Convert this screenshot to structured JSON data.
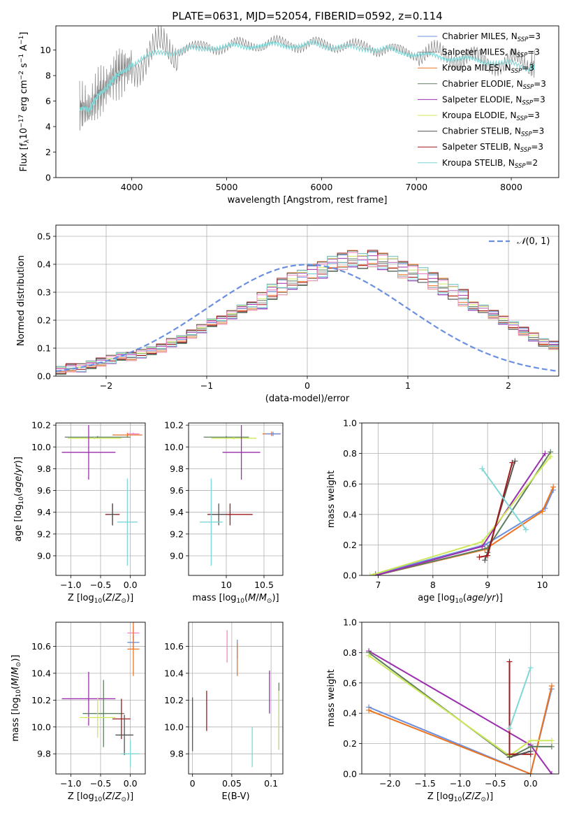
{
  "figure_title": "PLATE=0631, MJD=52054, FIBERID=0592, z=0.114",
  "colors": {
    "Chabrier MILES": "#6b8fe0",
    "Salpeter MILES": "#8b8b8b",
    "Kroupa MILES": "#ec7420",
    "Chabrier ELODIE": "#5e7f5e",
    "Salpeter ELODIE": "#9b2fae",
    "Kroupa ELODIE": "#cde85a",
    "Chabrier STELIB": "#555555",
    "Salpeter STELIB": "#a01818",
    "Kroupa STELIB": "#7fd6d6",
    "Chabrier STELIB_alt": "#ef86c1"
  },
  "chart_data": [
    {
      "id": "spectrum",
      "type": "line",
      "title": "PLATE=0631, MJD=52054, FIBERID=0592, z=0.114",
      "xlabel": "wavelength [Angstrom, rest frame]",
      "ylabel": "Flux [f_λ 10^-17 erg cm^-2 s^-1 A^-1]",
      "xlim": [
        3200,
        8500
      ],
      "ylim": [
        0,
        11.9
      ],
      "xticks": [
        4000,
        5000,
        6000,
        7000,
        8000
      ],
      "yticks": [
        0,
        2,
        4,
        6,
        8,
        10
      ],
      "grid": false,
      "legend_position": "top-right",
      "legend": [
        {
          "main": "Chabrier MILES, N",
          "sub": "SSP",
          "tail": "=3",
          "color": "#6b8fe0"
        },
        {
          "main": "Salpeter MILES, N",
          "sub": "SSP",
          "tail": "=3",
          "color": "#8b8b8b"
        },
        {
          "main": "Kroupa MILES, N",
          "sub": "SSP",
          "tail": "=3",
          "color": "#ec7420"
        },
        {
          "main": "Chabrier ELODIE, N",
          "sub": "SSP",
          "tail": "=3",
          "color": "#5e7f5e"
        },
        {
          "main": "Salpeter ELODIE, N",
          "sub": "SSP",
          "tail": "=3",
          "color": "#9b2fae"
        },
        {
          "main": "Kroupa ELODIE, N",
          "sub": "SSP",
          "tail": "=3",
          "color": "#cde85a"
        },
        {
          "main": "Chabrier STELIB, N",
          "sub": "SSP",
          "tail": "=3",
          "color": "#555555"
        },
        {
          "main": "Salpeter STELIB, N",
          "sub": "SSP",
          "tail": "=3",
          "color": "#a01818"
        },
        {
          "main": "Kroupa STELIB, N",
          "sub": "SSP",
          "tail": "=2",
          "color": "#7fd6d6"
        }
      ],
      "series": [
        {
          "name": "data",
          "color": "#808080",
          "x": [
            3450,
            3500,
            3550,
            3600,
            3650,
            3700,
            3750,
            3800,
            3850,
            3900,
            3950,
            4000,
            4100,
            4200,
            4300,
            4400,
            4500,
            4600,
            4700,
            4800,
            4900,
            5000,
            5100,
            5200,
            5300,
            5400,
            5500,
            5600,
            5700,
            5800,
            5900,
            6000,
            6100,
            6200,
            6300,
            6400,
            6500,
            6600,
            6700,
            6800,
            6900,
            7000,
            7100,
            7200,
            7300,
            7400,
            7500,
            7600,
            7700,
            7800,
            7900,
            8000,
            8100,
            8200,
            8250
          ],
          "y": [
            5.4,
            5.6,
            5.2,
            6.0,
            6.6,
            6.9,
            7.3,
            7.8,
            8.2,
            8.4,
            8.6,
            9.0,
            9.4,
            9.6,
            9.9,
            10.0,
            10.1,
            10.2,
            10.1,
            10.3,
            10.3,
            10.3,
            10.4,
            10.4,
            10.5,
            10.4,
            10.5,
            10.5,
            10.5,
            10.4,
            10.5,
            10.4,
            10.4,
            10.4,
            10.3,
            10.2,
            10.3,
            10.1,
            10.1,
            9.9,
            9.9,
            9.8,
            9.7,
            9.6,
            9.5,
            9.5,
            9.4,
            9.3,
            9.2,
            9.2,
            9.0,
            9.0,
            8.9,
            8.8,
            8.8
          ]
        },
        {
          "name": "model",
          "color": "#7fd6d6",
          "x": [
            3450,
            3500,
            3550,
            3600,
            3650,
            3700,
            3750,
            3800,
            3850,
            3900,
            3950,
            4000,
            4100,
            4200,
            4300,
            4400,
            4500,
            4600,
            4700,
            4800,
            4900,
            5000,
            5100,
            5200,
            5300,
            5400,
            5500,
            5600,
            5700,
            5800,
            5900,
            6000,
            6100,
            6200,
            6300,
            6400,
            6500,
            6600,
            6700,
            6800,
            6900,
            7000,
            7100,
            7200,
            7300,
            7400,
            7500,
            7600,
            7700,
            7800,
            7900,
            8000,
            8100,
            8200,
            8250
          ],
          "y": [
            5.3,
            5.5,
            5.2,
            5.9,
            6.5,
            6.8,
            7.2,
            7.7,
            8.1,
            8.3,
            8.5,
            8.9,
            9.3,
            9.5,
            9.8,
            9.9,
            10.0,
            10.1,
            10.0,
            10.2,
            10.2,
            10.2,
            10.3,
            10.3,
            10.4,
            10.3,
            10.4,
            10.4,
            10.4,
            10.3,
            10.4,
            10.3,
            10.3,
            10.3,
            10.2,
            10.1,
            10.2,
            10.0,
            10.0,
            9.8,
            9.8,
            9.7,
            9.6,
            9.5,
            9.4,
            9.4,
            9.3,
            9.2,
            9.1,
            9.1,
            8.9,
            8.9,
            8.8,
            8.7,
            8.7
          ]
        }
      ]
    },
    {
      "id": "residuals",
      "type": "histogram",
      "xlabel": "(data-model)/error",
      "ylabel": "Normed distribution",
      "xlim": [
        -2.5,
        2.5
      ],
      "ylim": [
        0,
        0.54
      ],
      "xticks": [
        -2,
        -1,
        0,
        1,
        2
      ],
      "yticks": [
        0.0,
        0.1,
        0.2,
        0.3,
        0.4,
        0.5
      ],
      "grid": true,
      "legend_position": "top-right",
      "legend": [
        {
          "label": "N(0,1)",
          "color": "#6b8fe0",
          "style": "dashed"
        }
      ],
      "bin_width": 0.1,
      "x_start": -2.5,
      "hist_values": [
        0.02,
        0.03,
        0.03,
        0.04,
        0.05,
        0.06,
        0.07,
        0.07,
        0.08,
        0.09,
        0.1,
        0.12,
        0.13,
        0.15,
        0.17,
        0.19,
        0.2,
        0.22,
        0.24,
        0.25,
        0.27,
        0.3,
        0.32,
        0.34,
        0.35,
        0.37,
        0.38,
        0.4,
        0.41,
        0.42,
        0.41,
        0.42,
        0.41,
        0.4,
        0.38,
        0.37,
        0.36,
        0.34,
        0.32,
        0.3,
        0.28,
        0.25,
        0.24,
        0.22,
        0.2,
        0.18,
        0.16,
        0.14,
        0.12,
        0.11,
        0.1,
        0.09,
        0.08,
        0.07,
        0.06,
        0.05,
        0.05,
        0.04,
        0.03,
        0.03
      ],
      "curve": {
        "name": "N(0,1)",
        "mean": 0,
        "sigma": 1
      }
    },
    {
      "id": "z_age",
      "type": "errorbar",
      "xlabel": "Z [log10(Z/Z_sun)]",
      "ylabel": "age [log10(age/yr)]",
      "xlim": [
        -1.25,
        0.25
      ],
      "ylim": [
        8.82,
        10.22
      ],
      "xticks": [
        -1.0,
        -0.5,
        0.0
      ],
      "yticks": [
        9.0,
        9.2,
        9.4,
        9.6,
        9.8,
        10.0,
        10.2
      ],
      "grid": true,
      "points": [
        {
          "x": -0.05,
          "y": 10.11,
          "xerr": 0.25,
          "yerr": 0.02,
          "color": "#ec7420"
        },
        {
          "x": 0.05,
          "y": 10.12,
          "xerr": 0.1,
          "yerr": 0.01,
          "color": "#ef86c1"
        },
        {
          "x": -0.55,
          "y": 10.09,
          "xerr": 0.55,
          "yerr": 0.01,
          "color": "#5e7f5e"
        },
        {
          "x": -0.6,
          "y": 10.08,
          "xerr": 0.45,
          "yerr": 0.01,
          "color": "#cde85a"
        },
        {
          "x": -0.7,
          "y": 9.95,
          "xerr": 0.45,
          "yerr": 0.25,
          "color": "#9b2fae"
        },
        {
          "x": -0.3,
          "y": 9.38,
          "xerr": 0.12,
          "yerr": 0.1,
          "color": "#a01818"
        },
        {
          "x": -0.3,
          "y": 9.38,
          "xerr": 0.06,
          "yerr": 0.1,
          "color": "#555555"
        },
        {
          "x": -0.05,
          "y": 9.31,
          "xerr": 0.17,
          "yerr": 0.4,
          "color": "#7fd6d6"
        }
      ]
    },
    {
      "id": "mass_age",
      "type": "errorbar",
      "xlabel": "mass [log10(M/M_sun)]",
      "ylabel": "",
      "xlim": [
        9.5,
        10.75
      ],
      "ylim": [
        8.82,
        10.22
      ],
      "xticks": [
        10.0,
        10.5
      ],
      "yticks": [
        9.0,
        9.2,
        9.4,
        9.6,
        9.8,
        10.0,
        10.2
      ],
      "grid": true,
      "points": [
        {
          "x": 10.6,
          "y": 10.12,
          "xerr": 0.12,
          "yerr": 0.02,
          "color": "#ec7420"
        },
        {
          "x": 10.62,
          "y": 10.12,
          "xerr": 0.1,
          "yerr": 0.02,
          "color": "#6b8fe0"
        },
        {
          "x": 10.0,
          "y": 10.09,
          "xerr": 0.3,
          "yerr": 0.01,
          "color": "#5e7f5e"
        },
        {
          "x": 10.1,
          "y": 10.08,
          "xerr": 0.3,
          "yerr": 0.01,
          "color": "#cde85a"
        },
        {
          "x": 10.2,
          "y": 9.95,
          "xerr": 0.25,
          "yerr": 0.25,
          "color": "#9b2fae"
        },
        {
          "x": 10.05,
          "y": 9.38,
          "xerr": 0.3,
          "yerr": 0.1,
          "color": "#a01818"
        },
        {
          "x": 9.9,
          "y": 9.38,
          "xerr": 0.1,
          "yerr": 0.1,
          "color": "#555555"
        },
        {
          "x": 9.8,
          "y": 9.31,
          "xerr": 0.15,
          "yerr": 0.4,
          "color": "#7fd6d6"
        }
      ]
    },
    {
      "id": "age_weight",
      "type": "line",
      "xlabel": "age [log10(age/yr)]",
      "ylabel": "mass weight",
      "xlim": [
        6.7,
        10.3
      ],
      "ylim": [
        0,
        1
      ],
      "xticks": [
        7,
        8,
        9,
        10
      ],
      "yticks": [
        0.0,
        0.2,
        0.4,
        0.6,
        0.8,
        1.0
      ],
      "grid": true,
      "series": [
        {
          "color": "#6b8fe0",
          "x": [
            6.95,
            8.95,
            10.05,
            10.2
          ],
          "y": [
            0.01,
            0.2,
            0.44,
            0.56
          ]
        },
        {
          "color": "#ec7420",
          "x": [
            6.95,
            8.95,
            10.0,
            10.2
          ],
          "y": [
            0.0,
            0.17,
            0.42,
            0.58
          ]
        },
        {
          "color": "#5e7f5e",
          "x": [
            6.95,
            9.0,
            10.15
          ],
          "y": [
            0.0,
            0.18,
            0.81
          ]
        },
        {
          "color": "#9b2fae",
          "x": [
            6.95,
            8.9,
            10.05
          ],
          "y": [
            0.0,
            0.19,
            0.8
          ]
        },
        {
          "color": "#cde85a",
          "x": [
            6.85,
            8.9,
            10.15
          ],
          "y": [
            0.0,
            0.22,
            0.78
          ]
        },
        {
          "color": "#555555",
          "x": [
            8.95,
            9.0,
            9.5
          ],
          "y": [
            0.1,
            0.15,
            0.75
          ]
        },
        {
          "color": "#a01818",
          "x": [
            8.85,
            9.0,
            9.45
          ],
          "y": [
            0.12,
            0.13,
            0.74
          ]
        },
        {
          "color": "#7fd6d6",
          "x": [
            8.9,
            9.7
          ],
          "y": [
            0.7,
            0.3
          ]
        }
      ]
    },
    {
      "id": "z_mass",
      "type": "errorbar",
      "xlabel": "Z [log10(Z/Z_sun)]",
      "ylabel": "mass [log10(M/M_sun)]",
      "xlim": [
        -1.25,
        0.25
      ],
      "ylim": [
        9.65,
        10.78
      ],
      "xticks": [
        -1.0,
        -0.5,
        0.0
      ],
      "yticks": [
        9.8,
        10.0,
        10.2,
        10.4,
        10.6
      ],
      "grid": true,
      "points": [
        {
          "x": 0.05,
          "y": 10.7,
          "xerr": 0.1,
          "yerr": 0.05,
          "color": "#ef86c1"
        },
        {
          "x": 0.05,
          "y": 10.63,
          "xerr": 0.1,
          "yerr": 0.05,
          "color": "#6b8fe0"
        },
        {
          "x": 0.05,
          "y": 10.58,
          "xerr": 0.1,
          "yerr": 0.2,
          "color": "#ec7420"
        },
        {
          "x": -0.7,
          "y": 10.21,
          "xerr": 0.45,
          "yerr": 0.2,
          "color": "#9b2fae"
        },
        {
          "x": -0.45,
          "y": 10.1,
          "xerr": 0.35,
          "yerr": 0.25,
          "color": "#5e7f5e"
        },
        {
          "x": -0.55,
          "y": 10.07,
          "xerr": 0.3,
          "yerr": 0.15,
          "color": "#cde85a"
        },
        {
          "x": -0.15,
          "y": 10.06,
          "xerr": 0.15,
          "yerr": 0.15,
          "color": "#a01818"
        },
        {
          "x": -0.1,
          "y": 9.94,
          "xerr": 0.15,
          "yerr": 0.15,
          "color": "#555555"
        },
        {
          "x": 0.0,
          "y": 9.8,
          "xerr": 0.15,
          "yerr": 0.1,
          "color": "#7fd6d6"
        }
      ]
    },
    {
      "id": "ebv_mass",
      "type": "errorbar",
      "xlabel": "E(B-V)",
      "ylabel": "",
      "xlim": [
        -0.005,
        0.115
      ],
      "ylim": [
        9.65,
        10.78
      ],
      "xticks": [
        0.0,
        0.05,
        0.1
      ],
      "yticks": [
        9.8,
        10.0,
        10.2,
        10.4,
        10.6
      ],
      "grid": true,
      "points": [
        {
          "x": 0.044,
          "y": 10.6,
          "xerr": 0,
          "yerr": 0.12,
          "color": "#ef86c1"
        },
        {
          "x": 0.057,
          "y": 10.58,
          "xerr": 0,
          "yerr": 0.07,
          "color": "#6b8fe0"
        },
        {
          "x": 0.057,
          "y": 10.5,
          "xerr": 0,
          "yerr": 0.12,
          "color": "#ec7420"
        },
        {
          "x": 0.0,
          "y": 10.02,
          "xerr": 0,
          "yerr": 0.2,
          "color": "#555555"
        },
        {
          "x": 0.018,
          "y": 10.12,
          "xerr": 0,
          "yerr": 0.15,
          "color": "#a01818"
        },
        {
          "x": 0.098,
          "y": 10.26,
          "xerr": 0,
          "yerr": 0.16,
          "color": "#9b2fae"
        },
        {
          "x": 0.11,
          "y": 10.08,
          "xerr": 0,
          "yerr": 0.25,
          "color": "#5e7f5e"
        },
        {
          "x": 0.11,
          "y": 10.05,
          "xerr": 0,
          "yerr": 0.22,
          "color": "#cde85a"
        },
        {
          "x": 0.076,
          "y": 9.85,
          "xerr": 0,
          "yerr": 0.15,
          "color": "#7fd6d6"
        }
      ]
    },
    {
      "id": "z_weight",
      "type": "line",
      "xlabel": "Z [log10(Z/Z_sun)]",
      "ylabel": "mass weight",
      "xlim": [
        -2.4,
        0.4
      ],
      "ylim": [
        0,
        1
      ],
      "xticks": [
        -2.0,
        -1.5,
        -1.0,
        -0.5,
        0.0
      ],
      "yticks": [
        0.0,
        0.2,
        0.4,
        0.6,
        0.8,
        1.0
      ],
      "grid": true,
      "series": [
        {
          "color": "#6b8fe0",
          "x": [
            -2.3,
            0.0,
            0.3
          ],
          "y": [
            0.44,
            0.0,
            0.56
          ]
        },
        {
          "color": "#ec7420",
          "x": [
            -2.3,
            0.0,
            0.3
          ],
          "y": [
            0.42,
            0.0,
            0.58
          ]
        },
        {
          "color": "#9b2fae",
          "x": [
            -2.3,
            -0.0,
            0.3
          ],
          "y": [
            0.81,
            0.19,
            0.0
          ]
        },
        {
          "color": "#5e7f5e",
          "x": [
            -2.3,
            -0.3,
            0.0,
            0.3
          ],
          "y": [
            0.8,
            0.11,
            0.18,
            0.18
          ]
        },
        {
          "color": "#cde85a",
          "x": [
            -2.3,
            -0.3,
            0.0,
            0.3
          ],
          "y": [
            0.78,
            0.12,
            0.22,
            0.22
          ]
        },
        {
          "color": "#a01818",
          "x": [
            -0.3,
            -0.3,
            0.0
          ],
          "y": [
            0.74,
            0.13,
            0.13
          ]
        },
        {
          "color": "#7fd6d6",
          "x": [
            -0.3,
            0.0
          ],
          "y": [
            0.3,
            0.7
          ]
        },
        {
          "color": "#555555",
          "x": [
            -0.3,
            0.0
          ],
          "y": [
            0.11,
            0.15
          ]
        }
      ]
    }
  ]
}
